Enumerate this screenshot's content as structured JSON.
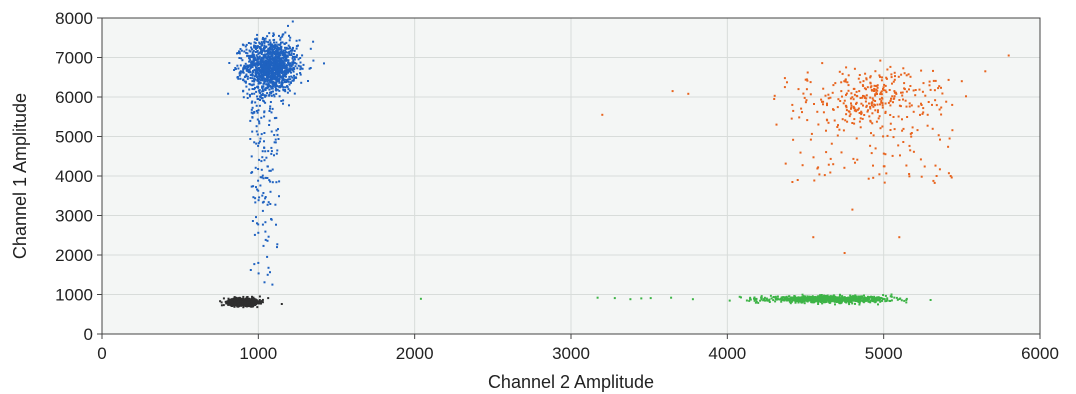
{
  "chart_data": {
    "type": "scatter",
    "title": "",
    "xlabel": "Channel 2 Amplitude",
    "ylabel": "Channel 1 Amplitude",
    "xlim": [
      0,
      6000
    ],
    "ylim": [
      0,
      8000
    ],
    "xticks": [
      0,
      1000,
      2000,
      3000,
      4000,
      5000,
      6000
    ],
    "yticks": [
      0,
      1000,
      2000,
      3000,
      4000,
      5000,
      6000,
      7000,
      8000
    ],
    "grid": true,
    "legend": "none",
    "background": "#f4f6f5",
    "clusters": [
      {
        "color": "#1f62c0",
        "core": {
          "x": 1080,
          "y": 6780,
          "sx": 85,
          "sy": 330,
          "n": 1300
        },
        "tail": {
          "x": [
            960,
            1120
          ],
          "y": [
            1300,
            6200
          ],
          "n": 160
        },
        "extra_points": [
          [
            1000,
            1800
          ],
          [
            1060,
            1500
          ],
          [
            1090,
            1250
          ],
          [
            880,
            6600
          ],
          [
            1350,
            7400
          ],
          [
            1420,
            6850
          ],
          [
            1190,
            7800
          ]
        ]
      },
      {
        "color": "#2f2f2f",
        "core": {
          "x": 900,
          "y": 810,
          "sx": 45,
          "sy": 45,
          "n": 900
        },
        "extra_points": [
          [
            1150,
            760
          ],
          [
            780,
            900
          ],
          [
            1010,
            950
          ]
        ]
      },
      {
        "color": "#e8641e",
        "core": {
          "x": 4920,
          "y": 5950,
          "sx": 200,
          "sy": 380,
          "n": 260
        },
        "spread": {
          "x": [
            4350,
            5450
          ],
          "y": [
            3800,
            6700
          ],
          "n": 150
        },
        "extra_points": [
          [
            3200,
            5550
          ],
          [
            3650,
            6150
          ],
          [
            3750,
            6080
          ],
          [
            4550,
            2450
          ],
          [
            4800,
            3150
          ],
          [
            4750,
            2050
          ],
          [
            5100,
            2450
          ],
          [
            5800,
            7050
          ],
          [
            5650,
            6650
          ],
          [
            5500,
            6400
          ],
          [
            4300,
            5950
          ],
          [
            4450,
            3900
          ]
        ]
      },
      {
        "color": "#3db346",
        "core": {
          "x": 4650,
          "y": 880,
          "sx": 190,
          "sy": 38,
          "n": 900
        },
        "extra_points": [
          [
            2040,
            890
          ],
          [
            3170,
            920
          ],
          [
            3280,
            910
          ],
          [
            3380,
            880
          ],
          [
            3450,
            900
          ],
          [
            3510,
            910
          ],
          [
            3640,
            920
          ],
          [
            3780,
            880
          ],
          [
            4150,
            870
          ],
          [
            4220,
            960
          ],
          [
            5300,
            860
          ],
          [
            5050,
            1000
          ]
        ]
      }
    ]
  }
}
